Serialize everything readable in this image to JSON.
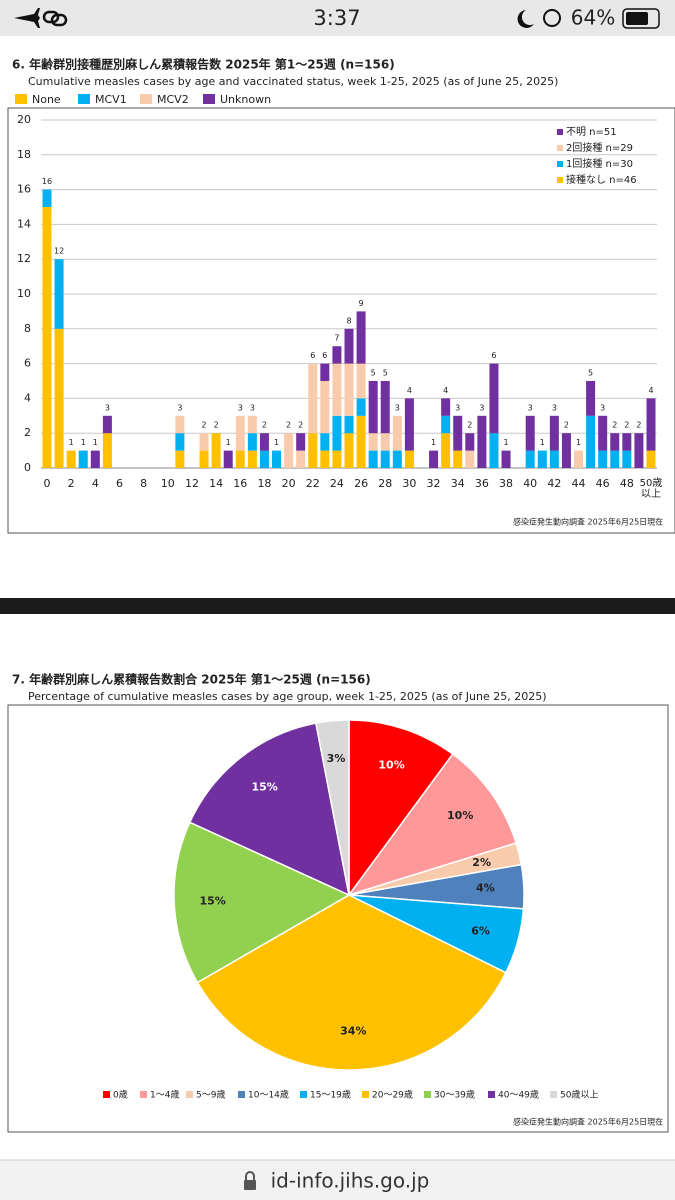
{
  "status_bar": {
    "time": "3:37",
    "battery": "64%"
  },
  "url": "id-info.jihs.go.jp",
  "chart_data": [
    {
      "type": "bar",
      "stacked": true,
      "title": "6. 年齢群別接種歴別麻しん累積報告数  2025年 第1～25週 (n=156)",
      "subtitle": "Cumulative measles cases by age and vaccinated status, week 1-25, 2025 (as of June 25, 2025)",
      "source": "感染症発生動向調査 2025年6月25日現在",
      "categories": [
        "0",
        null,
        "2",
        null,
        "4",
        null,
        "6",
        null,
        "8",
        null,
        "10",
        null,
        "12",
        null,
        "14",
        null,
        "16",
        null,
        "18",
        null,
        "20",
        null,
        "22",
        null,
        "24",
        null,
        "26",
        null,
        "28",
        null,
        "30",
        null,
        "32",
        null,
        "34",
        null,
        "36",
        null,
        "38",
        null,
        "40",
        null,
        "42",
        null,
        "44",
        null,
        "46",
        null,
        "48",
        null,
        "50歳以上"
      ],
      "series": [
        {
          "name": "None",
          "legend_note": "接種なし n=46",
          "color": "#ffc000",
          "values": [
            15,
            8,
            1,
            0,
            0,
            2,
            0,
            0,
            0,
            0,
            0,
            1,
            0,
            1,
            2,
            0,
            1,
            1,
            0,
            0,
            0,
            0,
            2,
            1,
            1,
            2,
            3,
            0,
            0,
            0,
            1,
            0,
            0,
            2,
            1,
            0,
            0,
            0,
            0,
            0,
            0,
            0,
            0,
            0,
            0,
            0,
            0,
            0,
            0,
            0,
            1
          ]
        },
        {
          "name": "MCV1",
          "legend_note": "1回接種 n=30",
          "color": "#00b0f0",
          "values": [
            1,
            4,
            0,
            1,
            0,
            0,
            0,
            0,
            0,
            0,
            0,
            1,
            0,
            0,
            0,
            0,
            0,
            1,
            1,
            1,
            0,
            0,
            0,
            1,
            2,
            1,
            1,
            1,
            1,
            1,
            0,
            0,
            0,
            1,
            0,
            0,
            0,
            2,
            0,
            0,
            1,
            1,
            1,
            0,
            0,
            3,
            1,
            1,
            1,
            0,
            0
          ]
        },
        {
          "name": "MCV2",
          "legend_note": "2回接種 n=29",
          "color": "#f8cbad",
          "values": [
            0,
            0,
            0,
            0,
            0,
            0,
            0,
            0,
            0,
            0,
            0,
            1,
            0,
            1,
            0,
            0,
            2,
            1,
            0,
            0,
            2,
            1,
            4,
            3,
            3,
            3,
            2,
            1,
            1,
            2,
            0,
            0,
            0,
            0,
            0,
            1,
            0,
            0,
            0,
            0,
            0,
            0,
            0,
            0,
            1,
            0,
            0,
            0,
            0,
            0,
            0
          ]
        },
        {
          "name": "Unknown",
          "legend_note": "不明 n=51",
          "color": "#7030a0",
          "values": [
            0,
            0,
            0,
            0,
            1,
            1,
            0,
            0,
            0,
            0,
            0,
            0,
            0,
            0,
            0,
            1,
            0,
            0,
            1,
            0,
            0,
            1,
            0,
            1,
            1,
            2,
            3,
            3,
            3,
            0,
            3,
            0,
            1,
            1,
            2,
            1,
            3,
            4,
            1,
            0,
            2,
            0,
            2,
            2,
            0,
            2,
            2,
            1,
            1,
            2,
            3
          ]
        }
      ],
      "totals": [
        16,
        12,
        1,
        1,
        1,
        3,
        null,
        null,
        null,
        null,
        null,
        3,
        null,
        2,
        2,
        1,
        3,
        3,
        2,
        1,
        2,
        2,
        6,
        6,
        7,
        8,
        9,
        5,
        5,
        3,
        4,
        null,
        1,
        4,
        3,
        2,
        3,
        6,
        1,
        null,
        3,
        1,
        3,
        2,
        1,
        5,
        3,
        2,
        2,
        2,
        4
      ],
      "ylim": [
        0,
        20
      ],
      "yticks": [
        0,
        2,
        4,
        6,
        8,
        10,
        12,
        14,
        16,
        18,
        20
      ],
      "grid": true
    },
    {
      "type": "pie",
      "title": "7. 年齢群別麻しん累積報告数割合  2025年 第1～25週 (n=156)",
      "subtitle": "Percentage of cumulative measles cases by age group, week 1-25, 2025 (as of June 25, 2025)",
      "source": "感染症発生動向調査 2025年6月25日現在",
      "categories": [
        "0歳",
        "1～4歳",
        "5～9歳",
        "10～14歳",
        "15～19歳",
        "20～29歳",
        "30～39歳",
        "40～49歳",
        "50歳以上"
      ],
      "values": [
        10,
        10,
        2,
        4,
        6,
        34,
        15,
        15,
        3
      ],
      "value_labels": [
        "10%",
        "10%",
        "2%",
        "4%",
        "6%",
        "34%",
        "15%",
        "15%",
        "3%"
      ],
      "colors": [
        "#ff0000",
        "#ff9999",
        "#f8cbad",
        "#4f81bd",
        "#00b0f0",
        "#ffc000",
        "#92d050",
        "#7030a0",
        "#d9d9d9"
      ]
    }
  ]
}
